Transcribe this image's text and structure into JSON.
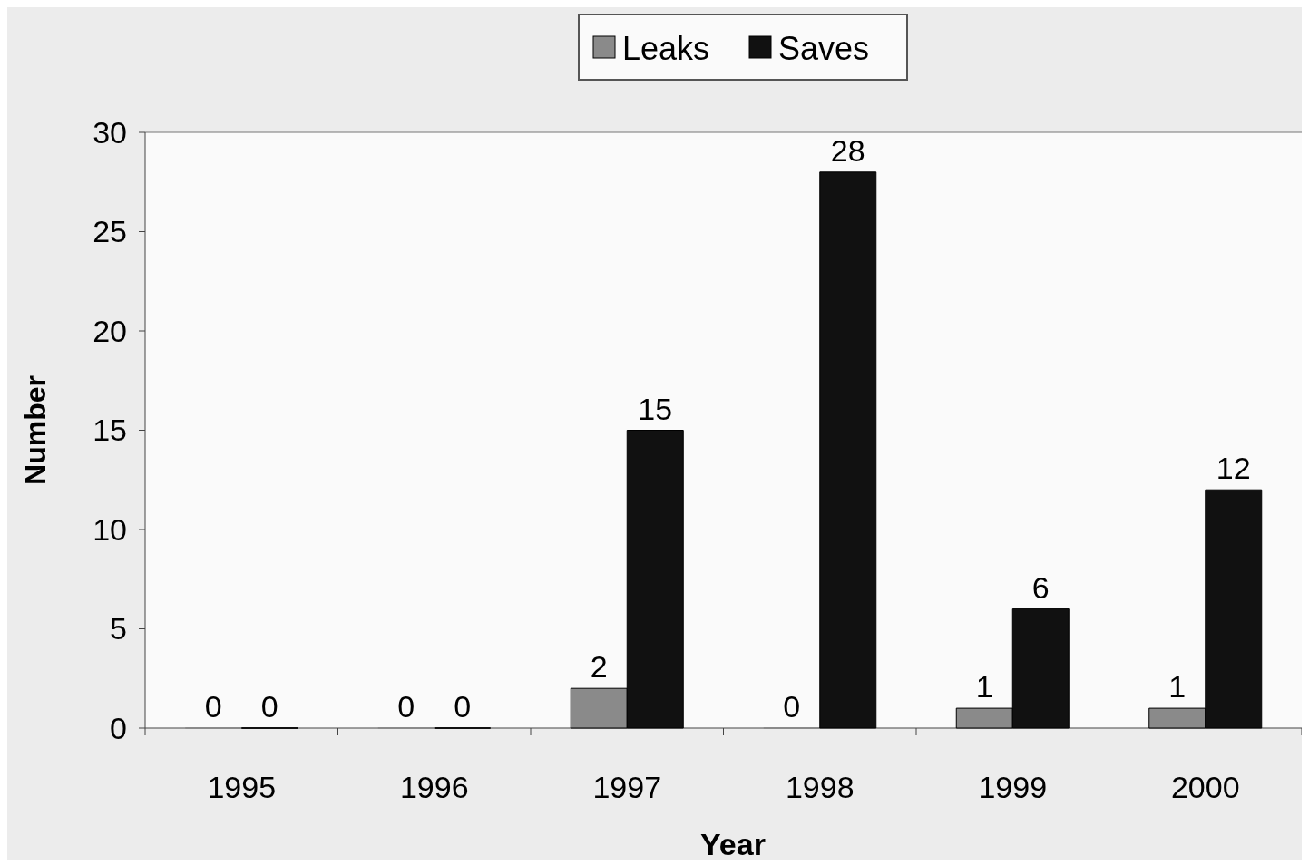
{
  "chart_data": {
    "type": "bar",
    "xlabel": "Year",
    "ylabel": "Number",
    "categories": [
      "1995",
      "1996",
      "1997",
      "1998",
      "1999",
      "2000"
    ],
    "series": [
      {
        "name": "Leaks",
        "color": "#8a8a8a",
        "values": [
          0,
          0,
          2,
          0,
          1,
          1
        ]
      },
      {
        "name": "Saves",
        "color": "#111111",
        "values": [
          0,
          0,
          15,
          28,
          6,
          12
        ]
      }
    ],
    "ylim": [
      0,
      30
    ],
    "yticks": [
      0,
      5,
      10,
      15,
      20,
      25,
      30
    ],
    "data_labels": true,
    "legend": "top",
    "grid": false
  }
}
